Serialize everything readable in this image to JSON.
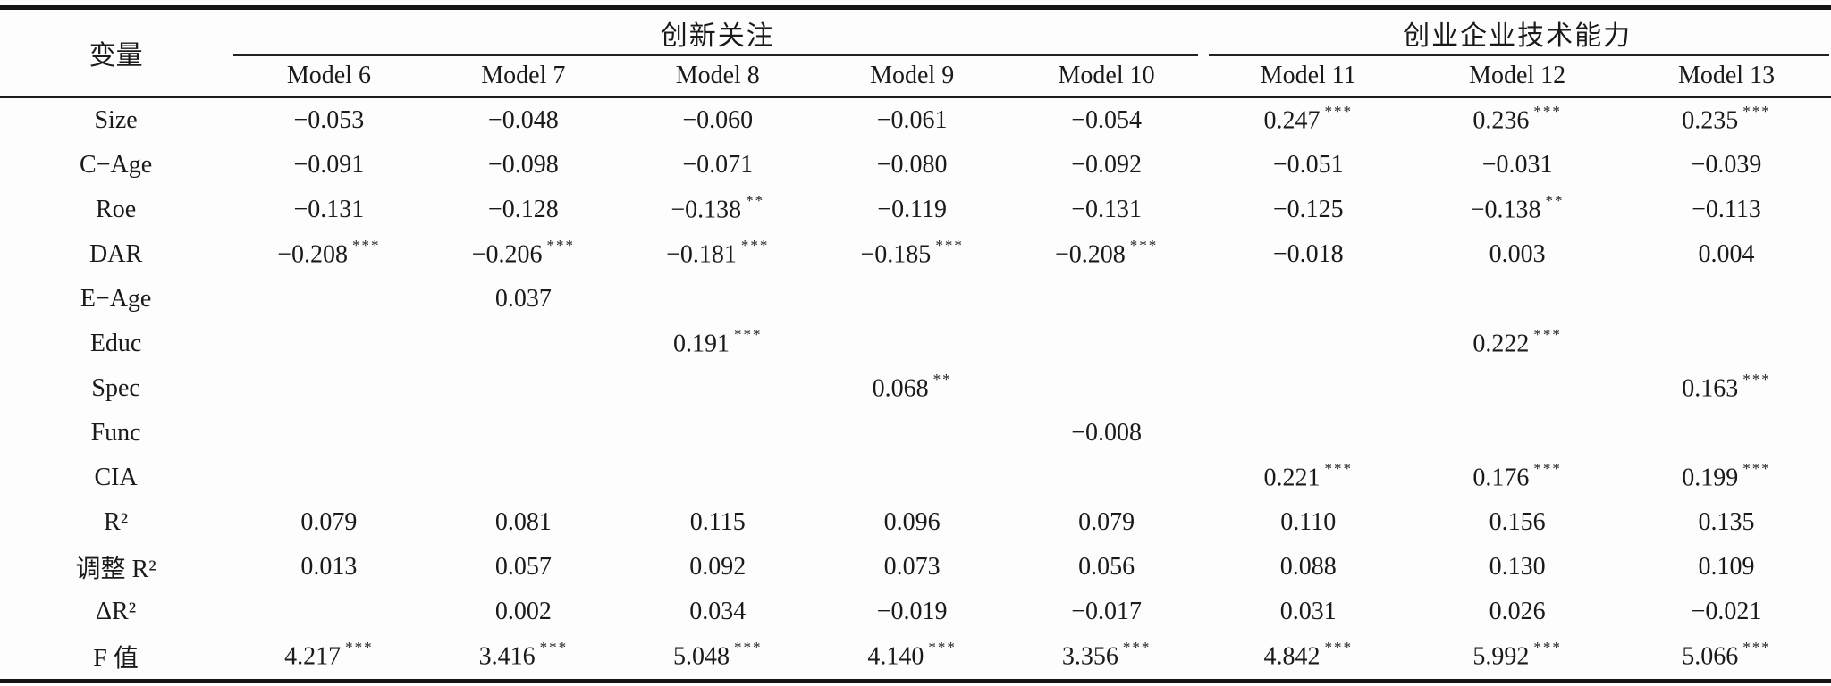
{
  "colors": {
    "rule": "#161616",
    "text": "#1a1a1a",
    "background": "#fdfdfd"
  },
  "table": {
    "variable_header": "变量",
    "group_headers": [
      {
        "label": "创新关注",
        "span": 5
      },
      {
        "label": "创业企业技术能力",
        "span": 3
      }
    ],
    "model_headers": [
      "Model 6",
      "Model 7",
      "Model 8",
      "Model 9",
      "Model 10",
      "Model 11",
      "Model 12",
      "Model 13"
    ],
    "rows": [
      {
        "label": "Size",
        "cells": [
          "−0.053",
          "−0.048",
          "−0.060",
          "−0.061",
          "−0.054",
          "0.247***",
          "0.236***",
          "0.235***"
        ]
      },
      {
        "label": "C−Age",
        "cells": [
          "−0.091",
          "−0.098",
          "−0.071",
          "−0.080",
          "−0.092",
          "−0.051",
          "−0.031",
          "−0.039"
        ]
      },
      {
        "label": "Roe",
        "cells": [
          "−0.131",
          "−0.128",
          "−0.138**",
          "−0.119",
          "−0.131",
          "−0.125",
          "−0.138**",
          "−0.113"
        ]
      },
      {
        "label": "DAR",
        "cells": [
          "−0.208***",
          "−0.206***",
          "−0.181***",
          "−0.185***",
          "−0.208***",
          "−0.018",
          "0.003",
          "0.004"
        ]
      },
      {
        "label": "E−Age",
        "cells": [
          "",
          "0.037",
          "",
          "",
          "",
          "",
          "",
          ""
        ]
      },
      {
        "label": "Educ",
        "cells": [
          "",
          "",
          "0.191***",
          "",
          "",
          "",
          "0.222***",
          ""
        ]
      },
      {
        "label": "Spec",
        "cells": [
          "",
          "",
          "",
          "0.068**",
          "",
          "",
          "",
          "0.163***"
        ]
      },
      {
        "label": "Func",
        "cells": [
          "",
          "",
          "",
          "",
          "−0.008",
          "",
          "",
          ""
        ]
      },
      {
        "label": "CIA",
        "cells": [
          "",
          "",
          "",
          "",
          "",
          "0.221***",
          "0.176***",
          "0.199***"
        ]
      },
      {
        "label": "R²",
        "cells": [
          "0.079",
          "0.081",
          "0.115",
          "0.096",
          "0.079",
          "0.110",
          "0.156",
          "0.135"
        ]
      },
      {
        "label": "调整 R²",
        "cells": [
          "0.013",
          "0.057",
          "0.092",
          "0.073",
          "0.056",
          "0.088",
          "0.130",
          "0.109"
        ]
      },
      {
        "label": "ΔR²",
        "cells": [
          "",
          "0.002",
          "0.034",
          "−0.019",
          "−0.017",
          "0.031",
          "0.026",
          "−0.021"
        ]
      },
      {
        "label": "F 值",
        "cells": [
          "4.217***",
          "3.416***",
          "5.048***",
          "4.140***",
          "3.356***",
          "4.842***",
          "5.992***",
          "5.066***"
        ]
      }
    ]
  }
}
